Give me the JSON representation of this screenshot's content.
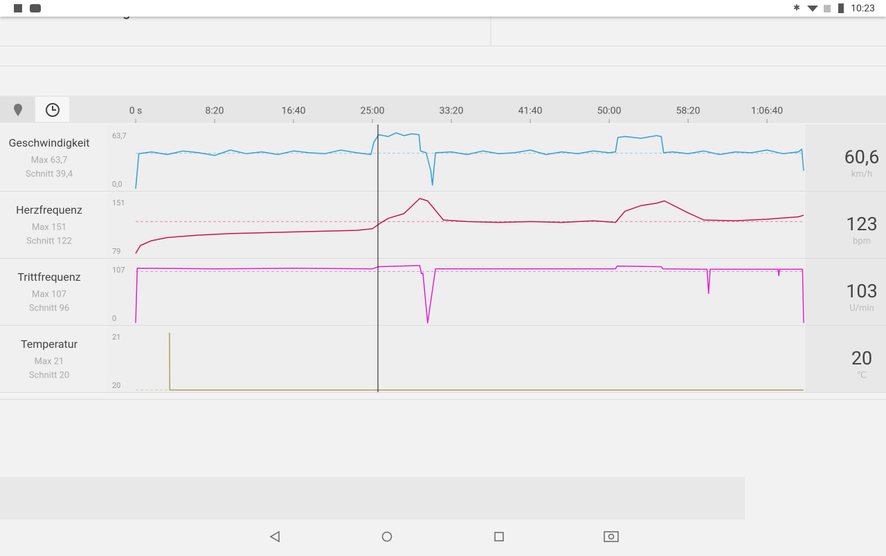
{
  "status_bar": {
    "time": "10:23"
  },
  "header_text": "Herausforderungen.",
  "time_axis": {
    "xlim": [
      0,
      4232
    ],
    "cursor": 1535,
    "xticks": [
      {
        "value": 0,
        "label": "0 s"
      },
      {
        "value": 500,
        "label": "8:20"
      },
      {
        "value": 1000,
        "label": "16:40"
      },
      {
        "value": 1500,
        "label": "25:00"
      },
      {
        "value": 2000,
        "label": "33:20"
      },
      {
        "value": 2500,
        "label": "41:40"
      },
      {
        "value": 3000,
        "label": "50:00"
      },
      {
        "value": 3500,
        "label": "58:20"
      },
      {
        "value": 4000,
        "label": "1:06:40"
      }
    ]
  },
  "chart_data": [
    {
      "type": "line",
      "title": "Geschwindigkeit",
      "stats": [
        "Max 63,7",
        "Schnitt 39,4"
      ],
      "current": "60,6",
      "unit": "km/h",
      "ylim": [
        0,
        63.7
      ],
      "yticks": [
        {
          "value": 63.7,
          "label": "63,7"
        },
        {
          "value": 0,
          "label": "0,0"
        }
      ],
      "average": 39.4,
      "x": [
        0,
        20,
        100,
        200,
        300,
        400,
        500,
        600,
        700,
        800,
        900,
        1000,
        1100,
        1200,
        1300,
        1400,
        1490,
        1510,
        1540,
        1600,
        1650,
        1700,
        1750,
        1795,
        1805,
        1840,
        1870,
        1880,
        1900,
        2000,
        2100,
        2200,
        2300,
        2400,
        2500,
        2600,
        2700,
        2800,
        2900,
        3000,
        3040,
        3055,
        3100,
        3200,
        3300,
        3330,
        3345,
        3400,
        3500,
        3600,
        3700,
        3800,
        3900,
        4000,
        4100,
        4200,
        4220,
        4232
      ],
      "series": [
        {
          "color": "#2f9fd8",
          "values": [
            0,
            39,
            41,
            38,
            42,
            40,
            37,
            43,
            39,
            41,
            38,
            42,
            40,
            39,
            43,
            40,
            38,
            52,
            60,
            58,
            62,
            59,
            61,
            60,
            42,
            40,
            20,
            4,
            40,
            41,
            38,
            42,
            39,
            40,
            43,
            38,
            41,
            39,
            42,
            40,
            41,
            57,
            58,
            56,
            59,
            58,
            40,
            41,
            39,
            42,
            38,
            41,
            40,
            43,
            39,
            41,
            44,
            20
          ]
        }
      ]
    },
    {
      "type": "line",
      "title": "Herzfrequenz",
      "stats": [
        "Max 151",
        "Schnitt 122"
      ],
      "current": "123",
      "unit": "bpm",
      "ylim": [
        79,
        151
      ],
      "yticks": [
        151,
        79
      ],
      "average": 122,
      "x": [
        0,
        30,
        100,
        200,
        400,
        600,
        800,
        1000,
        1200,
        1400,
        1500,
        1550,
        1600,
        1700,
        1800,
        1850,
        1950,
        2100,
        2300,
        2500,
        2700,
        2900,
        3040,
        3100,
        3200,
        3300,
        3350,
        3500,
        3600,
        3800,
        4000,
        4200,
        4232
      ],
      "series": [
        {
          "color": "#d0104c",
          "values": [
            82,
            92,
            98,
            102,
            105,
            107,
            108,
            109,
            110,
            111,
            113,
            120,
            126,
            132,
            151,
            148,
            124,
            122,
            121,
            122,
            121,
            123,
            121,
            135,
            142,
            145,
            148,
            133,
            124,
            123,
            125,
            128,
            130
          ]
        }
      ]
    },
    {
      "type": "line",
      "title": "Trittfrequenz",
      "stats": [
        "Max 107",
        "Schnitt 96"
      ],
      "current": "103",
      "unit": "U/min",
      "ylim": [
        0,
        107
      ],
      "yticks": [
        107,
        0
      ],
      "average": 96,
      "x": [
        0,
        10,
        500,
        1000,
        1500,
        1540,
        1800,
        1810,
        1820,
        1850,
        1900,
        2500,
        3040,
        3050,
        3330,
        3340,
        3620,
        3630,
        3640,
        4070,
        4075,
        4080,
        4225,
        4232
      ],
      "series": [
        {
          "color": "#e020d0",
          "values": [
            0,
            102,
            101,
            102,
            101,
            105,
            107,
            92,
            93,
            0,
            101,
            101,
            101,
            106,
            105,
            101,
            100,
            55,
            100,
            100,
            88,
            100,
            100,
            0
          ]
        }
      ]
    },
    {
      "type": "line",
      "title": "Temperatur",
      "stats": [
        "Max 21",
        "Schnitt 20"
      ],
      "current": "20",
      "unit": "℃",
      "ylim": [
        20,
        21
      ],
      "yticks": [
        21,
        20
      ],
      "average": 20,
      "x": [
        214,
        216,
        4232
      ],
      "series": [
        {
          "color": "#a8a060",
          "values": [
            21,
            20,
            20
          ]
        }
      ]
    }
  ]
}
